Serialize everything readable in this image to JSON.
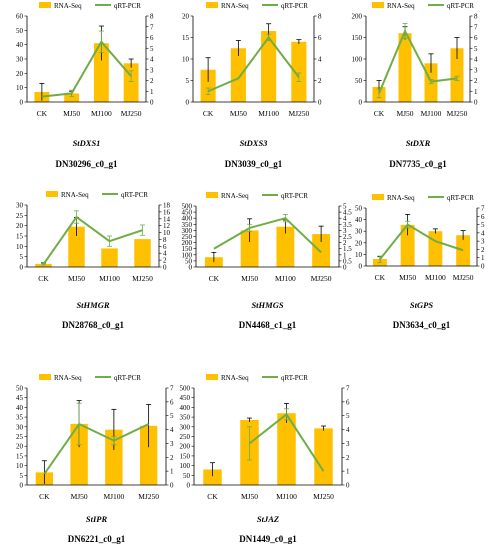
{
  "colors": {
    "bar": "#FFC000",
    "line": "#70AD47",
    "axis": "#000000",
    "error": "#000000"
  },
  "legend": {
    "bar_label": "RNA-Seq",
    "line_label": "qRT-PCR"
  },
  "chart_data": [
    {
      "type": "bar",
      "categories": [
        "CK",
        "MJ50",
        "MJ100",
        "MJ250"
      ],
      "ylim": [
        0,
        60
      ],
      "yticks": [
        0,
        10,
        20,
        30,
        40,
        50,
        60
      ],
      "y2lim": [
        0,
        8
      ],
      "y2ticks": [
        0,
        1,
        2,
        3,
        4,
        5,
        6,
        7,
        8
      ],
      "series": [
        {
          "name": "RNA-Seq",
          "values": [
            7,
            6,
            41,
            27
          ],
          "errors": [
            6,
            1.5,
            12,
            3
          ]
        },
        {
          "name": "qRT-PCR",
          "values": [
            0.5,
            0.8,
            5.6,
            2.4
          ],
          "errors": [
            0,
            0.3,
            1,
            0.5
          ]
        }
      ],
      "gene": "StDXS1",
      "id": "DN30296_c0_g1"
    },
    {
      "type": "bar",
      "categories": [
        "CK",
        "MJ50",
        "MJ100",
        "MJ250"
      ],
      "ylim": [
        0,
        20
      ],
      "yticks": [
        0,
        5,
        10,
        15,
        20
      ],
      "y2lim": [
        0,
        8
      ],
      "y2ticks": [
        0,
        2,
        4,
        6,
        8
      ],
      "series": [
        {
          "name": "RNA-Seq",
          "values": [
            7.5,
            12.5,
            16.5,
            14
          ],
          "errors": [
            2.8,
            1.8,
            1.7,
            0.5
          ]
        },
        {
          "name": "qRT-PCR",
          "values": [
            1,
            2.2,
            6,
            2.3
          ],
          "errors": [
            0.3,
            0,
            0.3,
            0.4
          ]
        }
      ],
      "gene": "StDXS3",
      "id": "DN3039_c0_g1"
    },
    {
      "type": "bar",
      "categories": [
        "CK",
        "MJ50",
        "MJ100",
        "MJ250"
      ],
      "ylim": [
        0,
        200
      ],
      "yticks": [
        0,
        50,
        100,
        150,
        200
      ],
      "y2lim": [
        0,
        8
      ],
      "y2ticks": [
        0,
        1,
        2,
        3,
        4,
        5,
        6,
        7,
        8
      ],
      "series": [
        {
          "name": "RNA-Seq",
          "values": [
            35,
            160,
            90,
            125
          ],
          "errors": [
            15,
            15,
            22,
            25
          ]
        },
        {
          "name": "qRT-PCR",
          "values": [
            0.8,
            6.6,
            1.9,
            2.2
          ],
          "errors": [
            0.4,
            0.7,
            0.2,
            0.2
          ]
        }
      ],
      "gene": "StDXR",
      "id": "DN7735_c0_g1"
    },
    {
      "type": "bar",
      "categories": [
        "CK",
        "MJ50",
        "MJ100",
        "MJ250"
      ],
      "ylim": [
        0,
        30
      ],
      "yticks": [
        0,
        5,
        10,
        15,
        20,
        25,
        30
      ],
      "y2lim": [
        0,
        18
      ],
      "y2ticks": [
        0,
        2,
        4,
        6,
        8,
        10,
        12,
        14,
        16,
        18
      ],
      "series": [
        {
          "name": "RNA-Seq",
          "values": [
            1.5,
            19.5,
            9,
            13.5
          ],
          "errors": [
            0.5,
            4.5,
            0,
            0
          ]
        },
        {
          "name": "qRT-PCR",
          "values": [
            0.8,
            14.5,
            7.5,
            10.7
          ],
          "errors": [
            0.2,
            1.8,
            1.5,
            1.5
          ]
        }
      ],
      "gene": "StHMGR",
      "id": "DN28768_c0_g1"
    },
    {
      "type": "bar",
      "categories": [
        "CK",
        "MJ50",
        "MJ100",
        "MJ250"
      ],
      "ylim": [
        0,
        500
      ],
      "yticks": [
        0,
        50,
        100,
        150,
        200,
        250,
        300,
        350,
        400,
        450,
        500
      ],
      "y2lim": [
        0,
        5
      ],
      "y2ticks": [
        0,
        0.5,
        1,
        1.5,
        2,
        2.5,
        3,
        3.5,
        4,
        4.5,
        5
      ],
      "series": [
        {
          "name": "RNA-Seq",
          "values": [
            80,
            300,
            330,
            270
          ],
          "errors": [
            40,
            95,
            55,
            65
          ]
        },
        {
          "name": "qRT-PCR",
          "values": [
            1.5,
            3.2,
            4,
            1.2
          ],
          "errors": [
            0,
            0.3,
            0.3,
            0
          ]
        }
      ],
      "gene": "StHMGS",
      "id": "DN4468_c1_g1"
    },
    {
      "type": "bar",
      "categories": [
        "CK",
        "MJ50",
        "MJ100",
        "MJ250"
      ],
      "ylim": [
        0,
        50
      ],
      "yticks": [
        0,
        10,
        20,
        30,
        40,
        50
      ],
      "y2lim": [
        0,
        7
      ],
      "y2ticks": [
        0,
        1,
        2,
        3,
        4,
        5,
        6,
        7
      ],
      "series": [
        {
          "name": "RNA-Seq",
          "values": [
            6,
            35.5,
            30,
            26.5
          ],
          "errors": [
            2,
            9,
            2,
            4
          ]
        },
        {
          "name": "qRT-PCR",
          "values": [
            0.8,
            5,
            3,
            1.9
          ],
          "errors": [
            0.4,
            0.4,
            0,
            0
          ]
        }
      ],
      "gene": "StGPS",
      "id": "DN3634_c0_g1"
    },
    {
      "type": "bar",
      "categories": [
        "CK",
        "MJ50",
        "MJ100",
        "MJ250"
      ],
      "ylim": [
        0,
        50
      ],
      "yticks": [
        0,
        5,
        10,
        15,
        20,
        25,
        30,
        35,
        40,
        45,
        50
      ],
      "y2lim": [
        0,
        7
      ],
      "y2ticks": [
        0,
        1,
        2,
        3,
        4,
        5,
        6,
        7
      ],
      "series": [
        {
          "name": "RNA-Seq",
          "values": [
            6.5,
            31.5,
            28.5,
            30.5
          ],
          "errors": [
            6,
            12,
            10.5,
            11
          ]
        },
        {
          "name": "qRT-PCR",
          "values": [
            0.8,
            4.4,
            3.2,
            4.4
          ],
          "errors": [
            0,
            1.5,
            0.3,
            0
          ]
        }
      ],
      "gene": "StIPR",
      "id": "DN6221_c0_g1"
    },
    {
      "type": "bar",
      "categories": [
        "CK",
        "MJ50",
        "MJ100",
        "MJ250"
      ],
      "ylim": [
        0,
        500
      ],
      "yticks": [
        0,
        50,
        100,
        150,
        200,
        250,
        300,
        350,
        400,
        450,
        500
      ],
      "y2lim": [
        0,
        7
      ],
      "y2ticks": [
        0,
        1,
        2,
        3,
        4,
        5,
        6,
        7
      ],
      "series": [
        {
          "name": "RNA-Seq",
          "values": [
            80,
            335,
            370,
            292
          ],
          "errors": [
            35,
            10,
            50,
            12
          ]
        },
        {
          "name": "qRT-PCR",
          "values": [
            null,
            3,
            5.1,
            1
          ],
          "errors": [
            0,
            1.2,
            0.4,
            0
          ]
        }
      ],
      "gene": "StJAZ",
      "id": "DN1449_c0_g1"
    }
  ]
}
